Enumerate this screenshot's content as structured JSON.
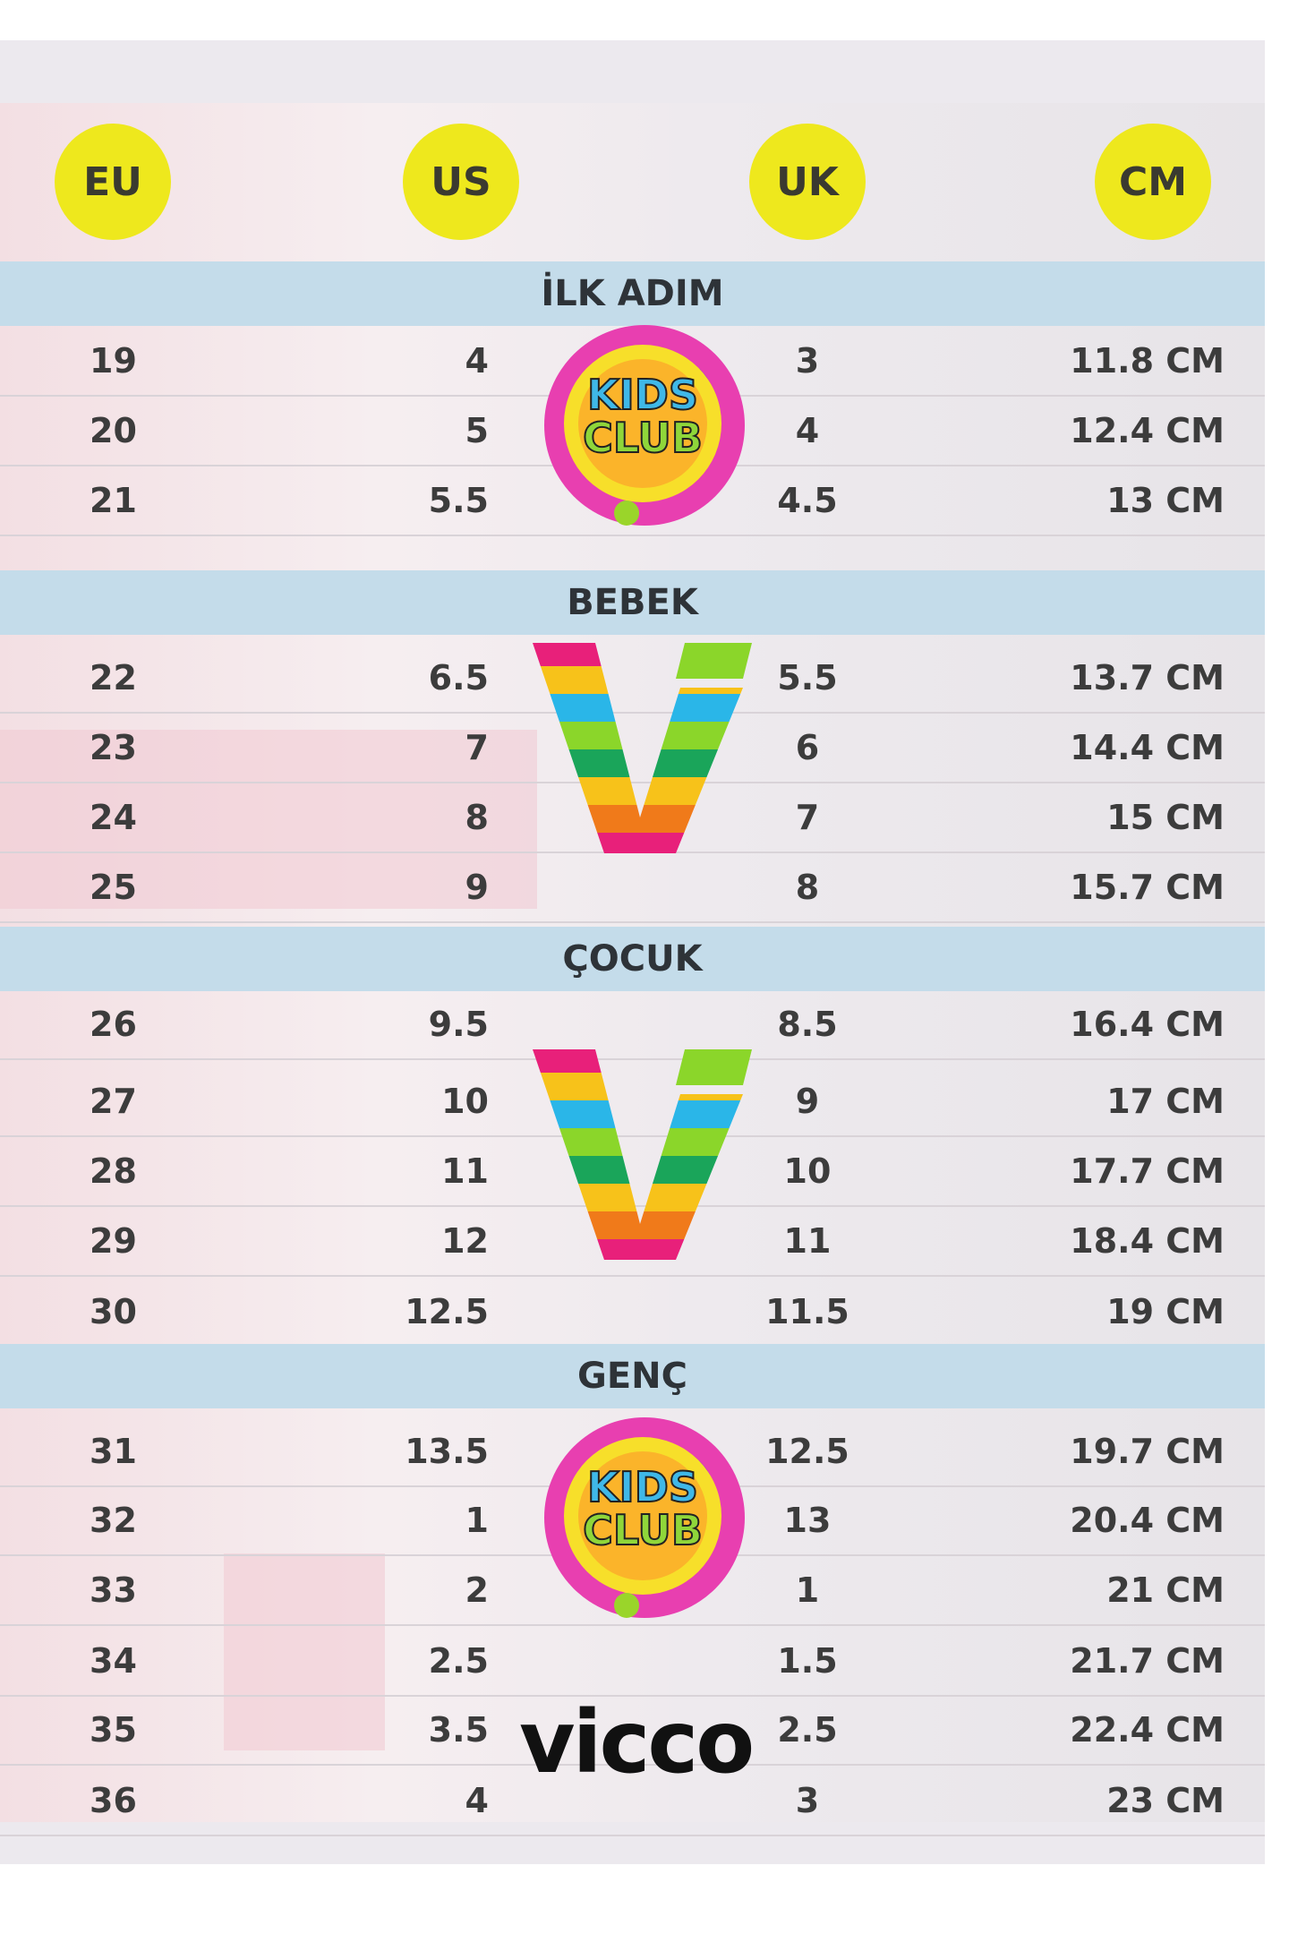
{
  "headers": [
    "EU",
    "US",
    "UK",
    "CM"
  ],
  "header_color": "#eee81d",
  "band_color": "#c4dcea",
  "sections": [
    {
      "title": "İLK ADIM",
      "rows": [
        [
          "19",
          "4",
          "3",
          "11.8 CM"
        ],
        [
          "20",
          "5",
          "4",
          "12.4 CM"
        ],
        [
          "21",
          "5.5",
          "4.5",
          "13 CM"
        ]
      ]
    },
    {
      "title": "BEBEK",
      "rows": [
        [
          "22",
          "6.5",
          "5.5",
          "13.7 CM"
        ],
        [
          "23",
          "7",
          "6",
          "14.4 CM"
        ],
        [
          "24",
          "8",
          "7",
          "15 CM"
        ],
        [
          "25",
          "9",
          "8",
          "15.7 CM"
        ]
      ]
    },
    {
      "title": "ÇOCUK",
      "rows": [
        [
          "26",
          "9.5",
          "8.5",
          "16.4 CM"
        ],
        [
          "27",
          "10",
          "9",
          "17 CM"
        ],
        [
          "28",
          "11",
          "10",
          "17.7 CM"
        ],
        [
          "29",
          "12",
          "11",
          "18.4 CM"
        ],
        [
          "30",
          "12.5",
          "11.5",
          "19 CM"
        ]
      ]
    },
    {
      "title": "GENÇ",
      "rows": [
        [
          "31",
          "13.5",
          "12.5",
          "19.7 CM"
        ],
        [
          "32",
          "1",
          "13",
          "20.4 CM"
        ],
        [
          "33",
          "2",
          "1",
          "21 CM"
        ],
        [
          "34",
          "2.5",
          "1.5",
          "21.7 CM"
        ],
        [
          "35",
          "3.5",
          "2.5",
          "22.4 CM"
        ],
        [
          "36",
          "4",
          "3",
          "23 CM"
        ]
      ]
    }
  ],
  "logos": {
    "kids_club": "KIDS CLUB",
    "brand": "vicco"
  }
}
